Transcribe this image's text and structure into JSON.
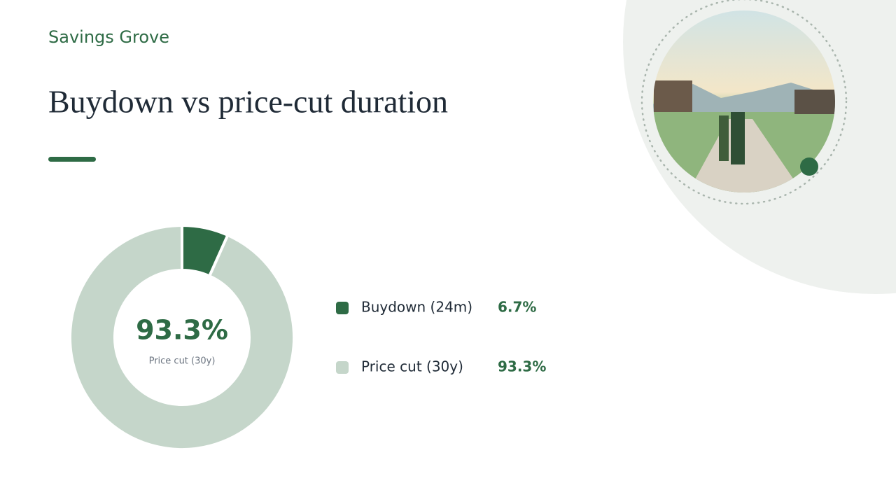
{
  "brand": "Savings Grove",
  "chart_data": {
    "type": "donut",
    "title": "Buydown vs price-cut duration",
    "categories": [
      "Buydown (24m)",
      "Price cut (30y)"
    ],
    "values": [
      6.7,
      93.3
    ],
    "value_labels": [
      "6.7%",
      "93.3%"
    ],
    "colors": [
      "#2e6b45",
      "#c5d6ca"
    ],
    "center_index": 1
  }
}
